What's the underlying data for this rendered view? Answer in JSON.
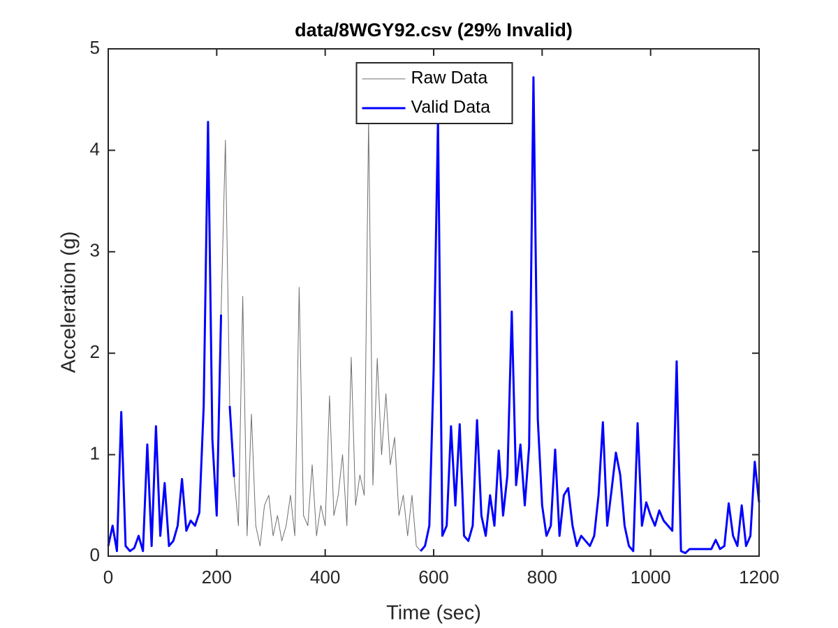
{
  "chart_data": {
    "type": "line",
    "title": "data/8WGY92.csv (29% Invalid)",
    "x_label": "Time (sec)",
    "y_label": "Acceleration (g)",
    "xlim": [
      0,
      1200
    ],
    "ylim": [
      0,
      5
    ],
    "xticks": [
      0,
      200,
      400,
      600,
      800,
      1000,
      1200
    ],
    "yticks": [
      0,
      1,
      2,
      3,
      4,
      5
    ],
    "legend": "north",
    "x": [
      0,
      8,
      16,
      24,
      32,
      40,
      48,
      56,
      64,
      72,
      80,
      88,
      96,
      104,
      112,
      120,
      128,
      136,
      144,
      152,
      160,
      168,
      176,
      184,
      192,
      200,
      208,
      216,
      224,
      232,
      240,
      248,
      256,
      264,
      272,
      280,
      288,
      296,
      304,
      312,
      320,
      328,
      336,
      344,
      352,
      360,
      368,
      376,
      384,
      392,
      400,
      408,
      416,
      424,
      432,
      440,
      448,
      456,
      464,
      472,
      480,
      488,
      496,
      504,
      512,
      520,
      528,
      536,
      544,
      552,
      560,
      568,
      576,
      584,
      592,
      600,
      608,
      616,
      624,
      632,
      640,
      648,
      656,
      664,
      672,
      680,
      688,
      696,
      704,
      712,
      720,
      728,
      736,
      744,
      752,
      760,
      768,
      776,
      784,
      792,
      800,
      808,
      816,
      824,
      832,
      840,
      848,
      856,
      864,
      872,
      880,
      888,
      896,
      904,
      912,
      920,
      928,
      936,
      944,
      952,
      960,
      968,
      976,
      984,
      992,
      1000,
      1008,
      1016,
      1024,
      1032,
      1040,
      1048,
      1056,
      1064,
      1072,
      1080,
      1088,
      1096,
      1104,
      1112,
      1120,
      1128,
      1136,
      1144,
      1152,
      1160,
      1168,
      1176,
      1184,
      1192,
      1200
    ],
    "series": [
      {
        "name": "Raw Data",
        "color": "#6e6e6e",
        "width": 1,
        "values": [
          0.1,
          0.3,
          0.05,
          1.42,
          0.1,
          0.05,
          0.08,
          0.2,
          0.05,
          1.1,
          0.1,
          1.28,
          0.2,
          0.72,
          0.1,
          0.15,
          0.3,
          0.76,
          0.25,
          0.35,
          0.3,
          0.43,
          1.48,
          4.28,
          1.15,
          0.4,
          2.38,
          4.1,
          1.48,
          0.78,
          0.3,
          2.56,
          0.2,
          1.4,
          0.3,
          0.1,
          0.5,
          0.6,
          0.2,
          0.4,
          0.15,
          0.3,
          0.6,
          0.2,
          2.65,
          0.4,
          0.3,
          0.9,
          0.2,
          0.5,
          0.3,
          1.58,
          0.4,
          0.6,
          1.0,
          0.3,
          1.96,
          0.5,
          0.8,
          0.6,
          4.3,
          0.7,
          1.95,
          1.0,
          1.6,
          0.9,
          1.17,
          0.4,
          0.6,
          0.2,
          0.6,
          0.1,
          0.05,
          0.1,
          0.3,
          1.84,
          4.3,
          0.2,
          0.3,
          1.28,
          0.5,
          1.3,
          0.2,
          0.15,
          0.3,
          1.34,
          0.4,
          0.2,
          0.6,
          0.3,
          1.04,
          0.4,
          0.8,
          2.41,
          0.7,
          1.1,
          0.5,
          1.08,
          4.72,
          1.35,
          0.5,
          0.2,
          0.3,
          1.05,
          0.2,
          0.6,
          0.67,
          0.3,
          0.1,
          0.2,
          0.15,
          0.1,
          0.2,
          0.6,
          1.32,
          0.3,
          0.65,
          1.02,
          0.8,
          0.3,
          0.1,
          0.05,
          1.31,
          0.3,
          0.53,
          0.4,
          0.3,
          0.45,
          0.35,
          0.3,
          0.25,
          1.92,
          0.05,
          0.03,
          0.07,
          0.07,
          0.07,
          0.07,
          0.07,
          0.07,
          0.16,
          0.07,
          0.1,
          0.52,
          0.2,
          0.1,
          0.5,
          0.1,
          0.2,
          0.93,
          0.53
        ]
      },
      {
        "name": "Valid Data",
        "color": "#0000ff",
        "width": 3,
        "values": [
          0.1,
          0.3,
          0.05,
          1.42,
          0.1,
          0.05,
          0.08,
          0.2,
          0.05,
          1.1,
          0.1,
          1.28,
          0.2,
          0.72,
          0.1,
          0.15,
          0.3,
          0.76,
          0.25,
          0.35,
          0.3,
          0.43,
          1.48,
          4.28,
          1.15,
          0.4,
          2.38,
          null,
          1.48,
          0.78,
          null,
          null,
          null,
          null,
          null,
          null,
          null,
          null,
          null,
          null,
          null,
          null,
          null,
          null,
          null,
          null,
          null,
          null,
          null,
          null,
          null,
          null,
          null,
          null,
          null,
          null,
          null,
          null,
          null,
          null,
          null,
          null,
          null,
          null,
          null,
          null,
          null,
          null,
          null,
          null,
          null,
          null,
          0.05,
          0.1,
          0.3,
          1.84,
          4.3,
          0.2,
          0.3,
          1.28,
          0.5,
          1.3,
          0.2,
          0.15,
          0.3,
          1.34,
          0.4,
          0.2,
          0.6,
          0.3,
          1.04,
          0.4,
          0.8,
          2.41,
          0.7,
          1.1,
          0.5,
          1.08,
          4.72,
          1.35,
          0.5,
          0.2,
          0.3,
          1.05,
          0.2,
          0.6,
          0.67,
          0.3,
          0.1,
          0.2,
          0.15,
          0.1,
          0.2,
          0.6,
          1.32,
          0.3,
          0.65,
          1.02,
          0.8,
          0.3,
          0.1,
          0.05,
          1.31,
          0.3,
          0.53,
          0.4,
          0.3,
          0.45,
          0.35,
          0.3,
          0.25,
          1.92,
          0.05,
          0.03,
          0.07,
          0.07,
          0.07,
          0.07,
          0.07,
          0.07,
          0.16,
          0.07,
          0.1,
          0.52,
          0.2,
          0.1,
          0.5,
          0.1,
          0.2,
          0.93,
          0.53
        ]
      }
    ]
  }
}
